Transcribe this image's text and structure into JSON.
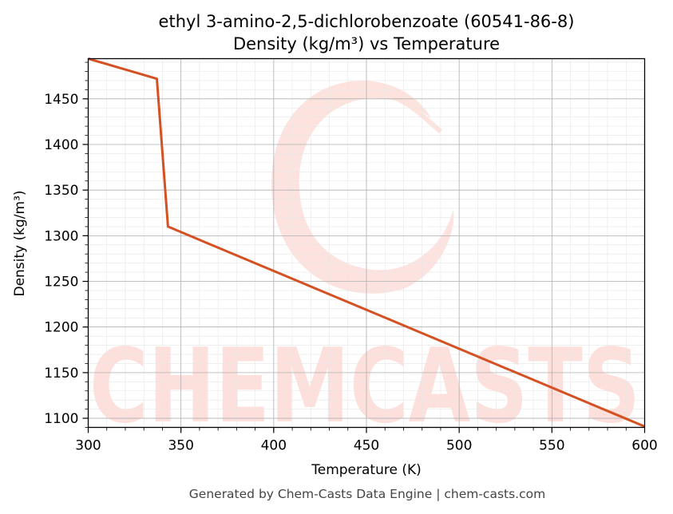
{
  "chart_data": {
    "type": "line",
    "title": "ethyl 3-amino-2,5-dichlorobenzoate (60541-86-8)",
    "subtitle": "Density (kg/m³) vs Temperature",
    "xlabel": "Temperature (K)",
    "ylabel": "Density (kg/m³)",
    "xlim": [
      300,
      600
    ],
    "ylim": [
      1090,
      1494
    ],
    "xticks": [
      300,
      350,
      400,
      450,
      500,
      550,
      600
    ],
    "yticks": [
      1100,
      1150,
      1200,
      1250,
      1300,
      1350,
      1400,
      1450
    ],
    "grid": true,
    "series": [
      {
        "color": "#d45123",
        "x": [
          300,
          337,
          343,
          600
        ],
        "y": [
          1494,
          1472,
          1310,
          1091
        ]
      }
    ]
  },
  "watermark": {
    "text": "CHEMCASTS",
    "color": "#fde0db"
  },
  "footer": "Generated by Chem-Casts Data Engine | chem-casts.com"
}
